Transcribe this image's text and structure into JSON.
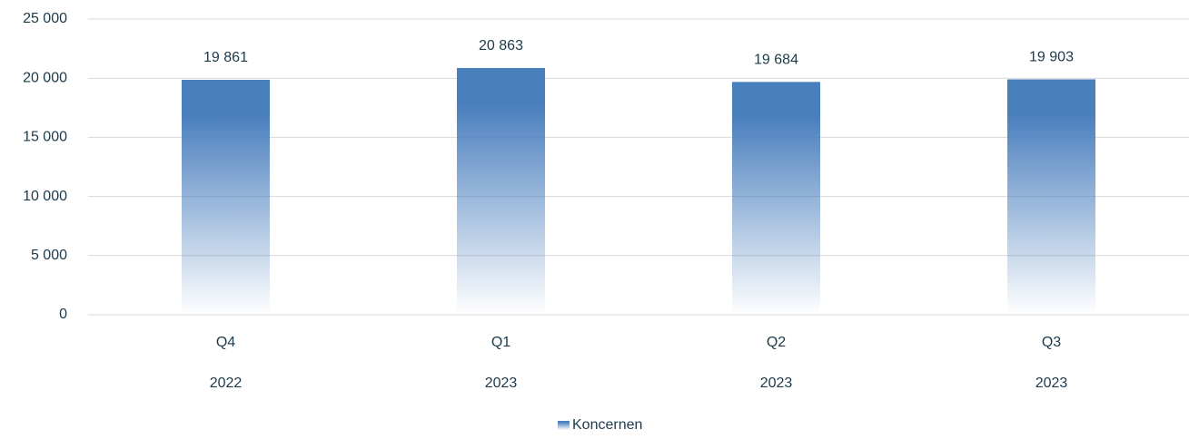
{
  "chart_data": {
    "type": "bar",
    "categories": [
      [
        "Q4",
        "2022"
      ],
      [
        "Q1",
        "2023"
      ],
      [
        "Q2",
        "2023"
      ],
      [
        "Q3",
        "2023"
      ]
    ],
    "series": [
      {
        "name": "Koncernen",
        "color": "#4a7fbe",
        "values": [
          19861,
          20863,
          19684,
          19903
        ],
        "value_labels": [
          "19 861",
          "20 863",
          "19 684",
          "19 903"
        ]
      }
    ],
    "ylim": [
      0,
      25000
    ],
    "yticks": [
      0,
      {
        "value": 5000,
        "label": "5 000"
      },
      {
        "value": 10000,
        "label": "10 000"
      },
      {
        "value": 15000,
        "label": "15 000"
      },
      {
        "value": 20000,
        "label": "20 000"
      },
      {
        "value": 25000,
        "label": "25 000"
      }
    ],
    "grid": true,
    "legend": "bottom"
  }
}
